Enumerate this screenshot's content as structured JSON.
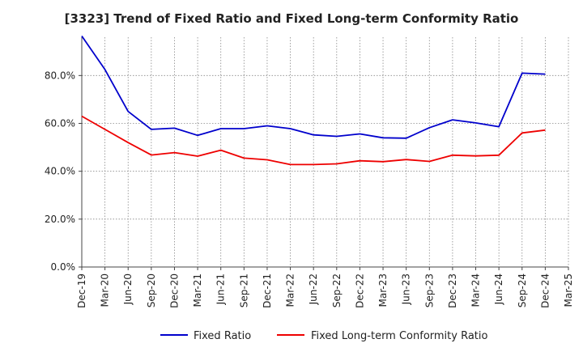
{
  "chart_data": {
    "type": "line",
    "title": "[3323]  Trend of Fixed Ratio and Fixed Long-term Conformity Ratio",
    "xlabel": "",
    "ylabel": "",
    "ylim": [
      0,
      96
    ],
    "grid": true,
    "legend_position": "bottom",
    "x_tick_labels": [
      "Dec-19",
      "Mar-20",
      "Jun-20",
      "Sep-20",
      "Dec-20",
      "Mar-21",
      "Jun-21",
      "Sep-21",
      "Dec-21",
      "Mar-22",
      "Jun-22",
      "Sep-22",
      "Dec-22",
      "Mar-23",
      "Jun-23",
      "Sep-23",
      "Dec-23",
      "Mar-24",
      "Jun-24",
      "Sep-24",
      "Dec-24",
      "Mar-25"
    ],
    "y_ticks": [
      0,
      20,
      40,
      60,
      80
    ],
    "y_tick_labels": [
      "0.0%",
      "20.0%",
      "40.0%",
      "60.0%",
      "80.0%"
    ],
    "x": [
      "Dec-19",
      "Mar-20",
      "Jun-20",
      "Sep-20",
      "Dec-20",
      "Mar-21",
      "Jun-21",
      "Sep-21",
      "Dec-21",
      "Mar-22",
      "Jun-22",
      "Sep-22",
      "Dec-22",
      "Mar-23",
      "Jun-23",
      "Sep-23",
      "Dec-23",
      "Mar-24",
      "Jun-24",
      "Sep-24",
      "Dec-24"
    ],
    "series": [
      {
        "name": "Fixed Ratio",
        "color": "#0000cc",
        "values": [
          96.5,
          82.5,
          65.0,
          57.5,
          58.0,
          55.0,
          57.8,
          57.8,
          59.0,
          57.8,
          55.2,
          54.6,
          55.6,
          54.0,
          53.8,
          58.2,
          61.5,
          60.2,
          58.6,
          81.0,
          80.6
        ]
      },
      {
        "name": "Fixed Long-term Conformity Ratio",
        "color": "#ee0000",
        "values": [
          63.0,
          57.5,
          52.0,
          46.8,
          47.8,
          46.3,
          48.8,
          45.5,
          44.8,
          42.8,
          42.8,
          43.1,
          44.4,
          44.0,
          44.9,
          44.1,
          46.7,
          46.4,
          46.7,
          56.0,
          57.2
        ]
      }
    ]
  }
}
